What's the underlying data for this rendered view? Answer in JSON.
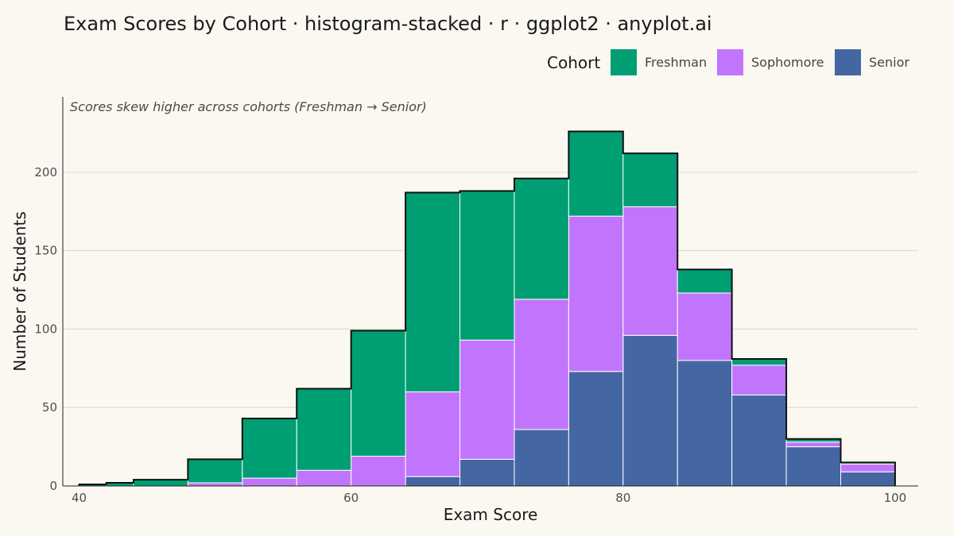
{
  "chart_data": {
    "type": "bar",
    "stacked": true,
    "title": "Exam Scores by Cohort · histogram-stacked · r · ggplot2 · anyplot.ai",
    "subtitle": "Scores skew higher across cohorts (Freshman → Senior)",
    "xlabel": "Exam Score",
    "ylabel": "Number of Students",
    "legend_title": "Cohort",
    "legend_position": "top-right",
    "xlim": [
      38.8,
      101.7
    ],
    "ylim": [
      0,
      248
    ],
    "x_ticks": [
      40,
      60,
      80,
      100
    ],
    "y_ticks": [
      0,
      50,
      100,
      150,
      200
    ],
    "grid": "horizontal major",
    "bins": [
      [
        40,
        42
      ],
      [
        42,
        44
      ],
      [
        44,
        48
      ],
      [
        48,
        52
      ],
      [
        52,
        56
      ],
      [
        56,
        60
      ],
      [
        60,
        64
      ],
      [
        64,
        68
      ],
      [
        68,
        72
      ],
      [
        72,
        76
      ],
      [
        76,
        80
      ],
      [
        80,
        84
      ],
      [
        84,
        88
      ],
      [
        88,
        92
      ],
      [
        92,
        96
      ],
      [
        96,
        100
      ]
    ],
    "series": [
      {
        "name": "Senior",
        "color": "#4467A3",
        "values": [
          0,
          0,
          0,
          0,
          0,
          0,
          0,
          6,
          17,
          36,
          73,
          96,
          80,
          58,
          25,
          9
        ]
      },
      {
        "name": "Sophomore",
        "color": "#C175FC",
        "values": [
          0,
          0,
          0,
          2,
          5,
          10,
          19,
          54,
          76,
          83,
          99,
          82,
          43,
          19,
          3,
          5
        ]
      },
      {
        "name": "Freshman",
        "color": "#009E73",
        "values": [
          1,
          2,
          4,
          15,
          38,
          52,
          80,
          127,
          95,
          77,
          54,
          34,
          15,
          4,
          2,
          1
        ]
      }
    ],
    "legend_order": [
      "Freshman",
      "Sophomore",
      "Senior"
    ]
  }
}
